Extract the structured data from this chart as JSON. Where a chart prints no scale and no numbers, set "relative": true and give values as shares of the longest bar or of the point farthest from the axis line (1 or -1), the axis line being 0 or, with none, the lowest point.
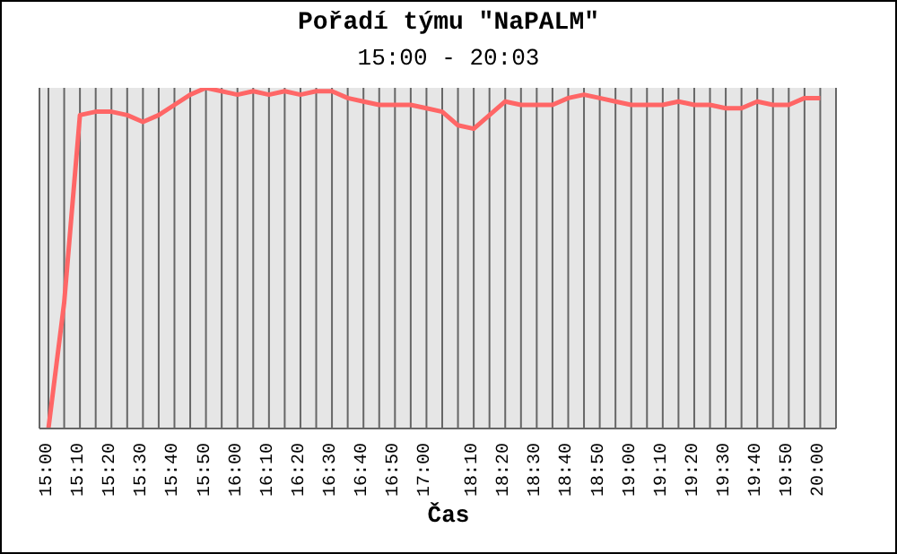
{
  "chart_data": {
    "type": "line",
    "title": "Pořadí týmu \"NaPALM\"",
    "subtitle": "15:00 - 20:03",
    "xlabel": "Čas",
    "relative": true,
    "grid": "x",
    "categories": [
      "15:00",
      null,
      "15:10",
      null,
      "15:20",
      null,
      "15:30",
      null,
      "15:40",
      null,
      "15:50",
      null,
      "16:00",
      null,
      "16:10",
      null,
      "16:20",
      null,
      "16:30",
      null,
      "16:40",
      null,
      "16:50",
      null,
      "17:00",
      null,
      null,
      "18:10",
      null,
      "18:20",
      null,
      "18:30",
      null,
      "18:40",
      null,
      "18:50",
      null,
      "19:00",
      null,
      "19:10",
      null,
      "19:20",
      null,
      "19:30",
      null,
      "19:40",
      null,
      "19:50",
      null,
      "20:00",
      null
    ],
    "series": [
      {
        "color": "#ff6666",
        "values": [
          0,
          0.37,
          0.92,
          0.93,
          0.93,
          0.92,
          0.9,
          0.92,
          0.95,
          0.98,
          1,
          0.99,
          0.98,
          0.99,
          0.98,
          0.99,
          0.98,
          0.99,
          0.99,
          0.97,
          0.96,
          0.95,
          0.95,
          0.95,
          0.94,
          0.93,
          0.89,
          0.88,
          0.92,
          0.96,
          0.95,
          0.95,
          0.95,
          0.97,
          0.98,
          0.97,
          0.96,
          0.95,
          0.95,
          0.95,
          0.96,
          0.95,
          0.95,
          0.94,
          0.94,
          0.96,
          0.95,
          0.95,
          0.97,
          0.97,
          null
        ]
      }
    ]
  }
}
